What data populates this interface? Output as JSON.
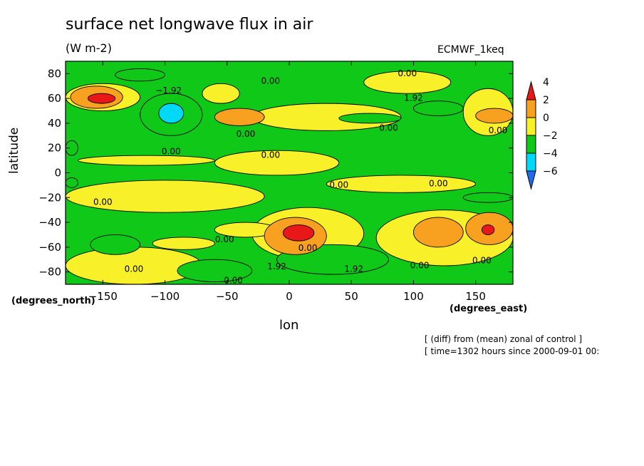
{
  "chart_data": {
    "type": "heatmap",
    "title": "surface net longwave flux in air",
    "units": "(W m-2)",
    "dataset": "ECMWF_1keq",
    "xlabel": "lon",
    "ylabel": "latitude",
    "x_unit_label": "(degrees_east)",
    "y_unit_label": "(degrees_north)",
    "xlim": [
      -180,
      180
    ],
    "ylim": [
      -90,
      90
    ],
    "x_ticks": [
      -150,
      -100,
      -50,
      0,
      50,
      100,
      150
    ],
    "x_tick_labels": [
      "−150",
      "−100",
      "−50",
      "0",
      "50",
      "100",
      "150"
    ],
    "y_ticks": [
      -80,
      -60,
      -40,
      -20,
      0,
      20,
      40,
      60,
      80
    ],
    "y_tick_labels": [
      "−80",
      "−60",
      "−40",
      "−20",
      "0",
      "20",
      "40",
      "60",
      "80"
    ],
    "colorbar": {
      "levels": [
        -6,
        -4,
        -2,
        0,
        2,
        4
      ],
      "level_labels": [
        "−6",
        "−4",
        "−2",
        "0",
        "2",
        "4"
      ],
      "colors": [
        "#1e6cf0",
        "#00d8f8",
        "#10c818",
        "#f8f028",
        "#f8a020",
        "#e81818"
      ]
    },
    "background_level_color": "#10c818",
    "regions": [
      {
        "level": 0,
        "lon": [
          -180,
          -20
        ],
        "lat": [
          -32,
          -6
        ]
      },
      {
        "level": 0,
        "lon": [
          -60,
          40
        ],
        "lat": [
          -2,
          18
        ]
      },
      {
        "level": 0,
        "lon": [
          -170,
          -60
        ],
        "lat": [
          6,
          14
        ]
      },
      {
        "level": 0,
        "lon": [
          30,
          150
        ],
        "lat": [
          -16,
          -2
        ]
      },
      {
        "level": 0,
        "lon": [
          -30,
          90
        ],
        "lat": [
          34,
          56
        ]
      },
      {
        "level": 0,
        "lon": [
          60,
          130
        ],
        "lat": [
          64,
          82
        ]
      },
      {
        "level": 0,
        "lon": [
          -180,
          -120
        ],
        "lat": [
          50,
          72
        ]
      },
      {
        "level": 0,
        "lon": [
          140,
          180
        ],
        "lat": [
          30,
          68
        ]
      },
      {
        "level": 0,
        "lon": [
          70,
          180
        ],
        "lat": [
          -75,
          -30
        ]
      },
      {
        "level": 0,
        "lon": [
          -30,
          60
        ],
        "lat": [
          -70,
          -28
        ]
      },
      {
        "level": 0,
        "lon": [
          -180,
          -70
        ],
        "lat": [
          -90,
          -60
        ]
      },
      {
        "level": 0,
        "lon": [
          -110,
          -60
        ],
        "lat": [
          -62,
          -52
        ]
      },
      {
        "level": 0,
        "lon": [
          -60,
          -10
        ],
        "lat": [
          -52,
          -40
        ]
      },
      {
        "level": 0,
        "lon": [
          -70,
          -40
        ],
        "lat": [
          56,
          72
        ]
      },
      {
        "level": 2,
        "lon": [
          -176,
          -134
        ],
        "lat": [
          52,
          70
        ]
      },
      {
        "level": 2,
        "lon": [
          -60,
          -20
        ],
        "lat": [
          38,
          52
        ]
      },
      {
        "level": 2,
        "lon": [
          -20,
          30
        ],
        "lat": [
          -66,
          -36
        ]
      },
      {
        "level": 2,
        "lon": [
          100,
          140
        ],
        "lat": [
          -60,
          -36
        ]
      },
      {
        "level": 2,
        "lon": [
          142,
          180
        ],
        "lat": [
          -58,
          -32
        ]
      },
      {
        "level": 2,
        "lon": [
          150,
          180
        ],
        "lat": [
          40,
          52
        ]
      },
      {
        "level": 4,
        "lon": [
          -162,
          -140
        ],
        "lat": [
          56,
          64
        ]
      },
      {
        "level": 4,
        "lon": [
          -5,
          20
        ],
        "lat": [
          -55,
          -42
        ]
      },
      {
        "level": 4,
        "lon": [
          155,
          165
        ],
        "lat": [
          -50,
          -42
        ]
      },
      {
        "level": -2,
        "lon": [
          -120,
          -70
        ],
        "lat": [
          30,
          64
        ]
      },
      {
        "level": -2,
        "lon": [
          -160,
          -120
        ],
        "lat": [
          -66,
          -50
        ]
      },
      {
        "level": -2,
        "lon": [
          -180,
          -170
        ],
        "lat": [
          -12,
          -4
        ]
      },
      {
        "level": -2,
        "lon": [
          -180,
          -170
        ],
        "lat": [
          14,
          26
        ]
      },
      {
        "level": -2,
        "lon": [
          -140,
          -100
        ],
        "lat": [
          74,
          84
        ]
      },
      {
        "level": -2,
        "lon": [
          40,
          90
        ],
        "lat": [
          40,
          48
        ]
      },
      {
        "level": -2,
        "lon": [
          100,
          140
        ],
        "lat": [
          46,
          58
        ]
      },
      {
        "level": -2,
        "lon": [
          140,
          180
        ],
        "lat": [
          -24,
          -16
        ]
      },
      {
        "level": -2,
        "lon": [
          -10,
          80
        ],
        "lat": [
          -82,
          -58
        ]
      },
      {
        "level": -2,
        "lon": [
          -90,
          -30
        ],
        "lat": [
          -88,
          -70
        ]
      },
      {
        "level": -4,
        "lon": [
          -105,
          -85
        ],
        "lat": [
          40,
          56
        ]
      }
    ],
    "contour_labels": [
      {
        "text": "0.00",
        "lon": 95,
        "lat": 78
      },
      {
        "text": "0.00",
        "lon": -15,
        "lat": 72
      },
      {
        "text": "−1.92",
        "lon": -97,
        "lat": 64
      },
      {
        "text": "1.92",
        "lon": 100,
        "lat": 58
      },
      {
        "text": "0.00",
        "lon": -35,
        "lat": 29
      },
      {
        "text": "0.00",
        "lon": 80,
        "lat": 34
      },
      {
        "text": "0.00",
        "lon": 168,
        "lat": 32
      },
      {
        "text": "0.00",
        "lon": -95,
        "lat": 15
      },
      {
        "text": "0.00",
        "lon": -15,
        "lat": 12
      },
      {
        "text": "0.00",
        "lon": 40,
        "lat": -12
      },
      {
        "text": "0.00",
        "lon": 120,
        "lat": -11
      },
      {
        "text": "0.00",
        "lon": -150,
        "lat": -26
      },
      {
        "text": "0.00",
        "lon": -52,
        "lat": -56
      },
      {
        "text": "0.00",
        "lon": 15,
        "lat": -63
      },
      {
        "text": "1.92",
        "lon": -10,
        "lat": -78
      },
      {
        "text": "1.92",
        "lon": 52,
        "lat": -80
      },
      {
        "text": "0.00",
        "lon": 105,
        "lat": -77
      },
      {
        "text": "0.00",
        "lon": 155,
        "lat": -73
      },
      {
        "text": "0.00",
        "lon": -125,
        "lat": -80
      },
      {
        "text": "0.00",
        "lon": -45,
        "lat": -89
      }
    ],
    "footnotes": [
      "[ (diff) from (mean) zonal of control ]",
      "[ time=1302 hours since 2000-09-01 00:"
    ]
  }
}
